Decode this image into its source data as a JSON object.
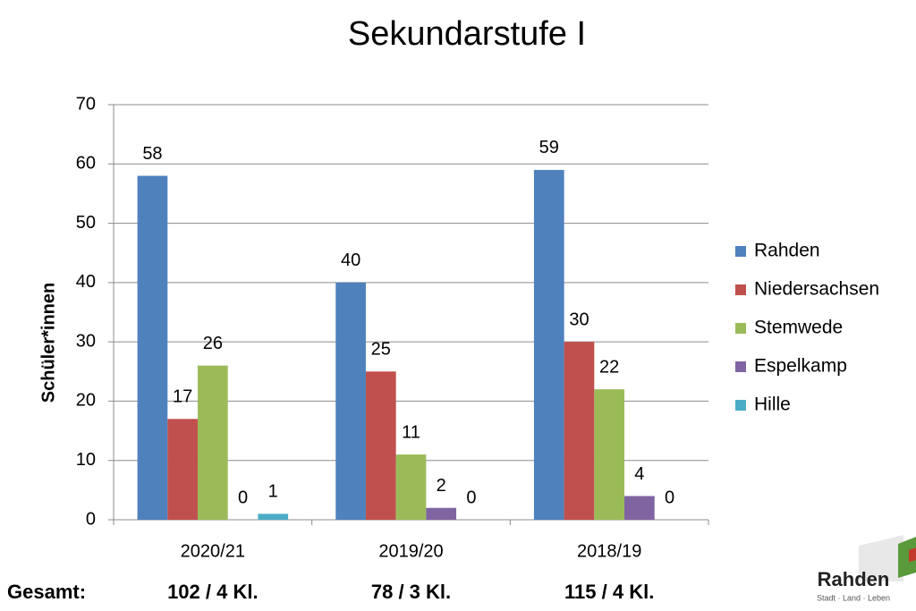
{
  "chart_data": {
    "type": "bar",
    "title": "Sekundarstufe I",
    "y_label": "Schüler*innen",
    "categories": [
      "2020/21",
      "2019/20",
      "2018/19"
    ],
    "series": [
      {
        "name": "Rahden",
        "color": "#4f81bd",
        "values": [
          58,
          40,
          59
        ]
      },
      {
        "name": "Niedersachsen",
        "color": "#c0504d",
        "values": [
          17,
          25,
          30
        ]
      },
      {
        "name": "Stemwede",
        "color": "#9bbb59",
        "values": [
          26,
          11,
          22
        ]
      },
      {
        "name": "Espelkamp",
        "color": "#8064a2",
        "values": [
          0,
          2,
          4
        ]
      },
      {
        "name": "Hille",
        "color": "#4bacc6",
        "values": [
          1,
          0,
          0
        ]
      }
    ],
    "ylim": [
      0,
      70
    ],
    "yticks": [
      0,
      10,
      20,
      30,
      40,
      50,
      60,
      70
    ],
    "grid": true,
    "legend": "right"
  },
  "footer": {
    "label": "Gesamt:",
    "totals": [
      "102 / 4 Kl.",
      "78 / 3 Kl.",
      "115 / 4 Kl."
    ]
  },
  "logo": {
    "name": "Rahden",
    "tagline": "Stadt · Land · Leben"
  }
}
